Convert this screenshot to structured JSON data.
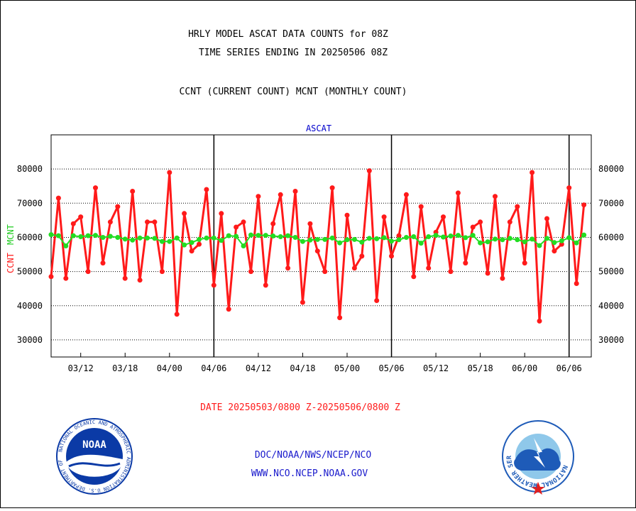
{
  "header": {
    "title_line1": "HRLY MODEL ASCAT DATA COUNTS for 08Z",
    "title_line2": "TIME SERIES ENDING IN 20250506 08Z",
    "subtitle": "CCNT (CURRENT COUNT) MCNT (MONTHLY COUNT)"
  },
  "footer": {
    "date_range": "DATE 20250503/0800 Z-20250506/0800 Z",
    "agency": "DOC/NOAA/NWS/NCEP/NCO",
    "website": "WWW.NCO.NCEP.NOAA.GOV"
  },
  "logos": {
    "noaa": {
      "text": "NOAA",
      "ring_text": "NATIONAL OCEANIC AND ATMOSPHERIC ADMINISTRATION  U.S. DEPARTMENT OF COMMERCE",
      "color": "#0b3aa6"
    },
    "nws": {
      "ring_text": "NATIONAL WEATHER SERVICE",
      "color": "#1e5bb8"
    }
  },
  "chart_data": {
    "type": "line",
    "title": "ASCAT",
    "ylabel_left": "CCNT",
    "ylabel_right": "MCNT",
    "ylim": [
      25000,
      90000
    ],
    "yticks": [
      30000,
      40000,
      50000,
      60000,
      70000,
      80000
    ],
    "ytick_labels": [
      "30000",
      "40000",
      "50000",
      "60000",
      "70000",
      "80000"
    ],
    "grid": true,
    "xlim": [
      0,
      73
    ],
    "xticks": [
      4,
      10,
      16,
      22,
      28,
      34,
      40,
      46,
      52,
      58,
      64,
      70
    ],
    "xtick_labels": [
      "03/12",
      "03/18",
      "04/00",
      "04/06",
      "04/12",
      "04/18",
      "05/00",
      "05/06",
      "05/12",
      "05/18",
      "06/00",
      "06/06"
    ],
    "day_boundaries": [
      22,
      46,
      70
    ],
    "colors": {
      "ccnt": "#ff1a1a",
      "mcnt": "#22dd22",
      "ascat_title": "#0000cc",
      "axis": "#000000"
    },
    "series": [
      {
        "name": "CCNT",
        "color": "#ff1a1a",
        "values": [
          48500,
          71500,
          48000,
          64000,
          66000,
          50000,
          74500,
          52500,
          64500,
          69000,
          48000,
          73500,
          47500,
          64500,
          64500,
          50000,
          79000,
          37500,
          67000,
          56000,
          58000,
          74000,
          46000,
          67000,
          39000,
          63000,
          64500,
          50000,
          72000,
          46000,
          64000,
          72500,
          51000,
          73500,
          41000,
          64000,
          56000,
          50000,
          74500,
          36500,
          66500,
          51000,
          54500,
          79500,
          41500,
          66000,
          54500,
          60500,
          72500,
          48500,
          69000,
          51000,
          61500,
          66000,
          50000,
          73000,
          52500,
          63000,
          64500,
          49500,
          72000,
          48000,
          64500,
          69000,
          52500,
          79000,
          35500,
          65500,
          56000,
          58000,
          74500,
          46500,
          69500
        ]
      },
      {
        "name": "MCNT",
        "color": "#22dd22",
        "values": [
          60800,
          60500,
          57500,
          60500,
          60200,
          60500,
          60600,
          60000,
          60300,
          60000,
          59500,
          59200,
          59800,
          59800,
          59700,
          58800,
          58800,
          59800,
          57800,
          58500,
          59400,
          59800,
          59800,
          59100,
          60500,
          60300,
          57500,
          60700,
          60600,
          60600,
          60400,
          60200,
          60500,
          60000,
          58800,
          59200,
          59400,
          59400,
          59800,
          58400,
          59300,
          59400,
          58600,
          59700,
          59600,
          59900,
          58900,
          59300,
          60000,
          60200,
          58300,
          60200,
          60600,
          60100,
          60400,
          60600,
          59900,
          60600,
          58400,
          58700,
          59500,
          59300,
          59700,
          59300,
          58700,
          59500,
          57600,
          59700,
          58500,
          59000,
          59900,
          58400,
          60700
        ]
      }
    ]
  }
}
